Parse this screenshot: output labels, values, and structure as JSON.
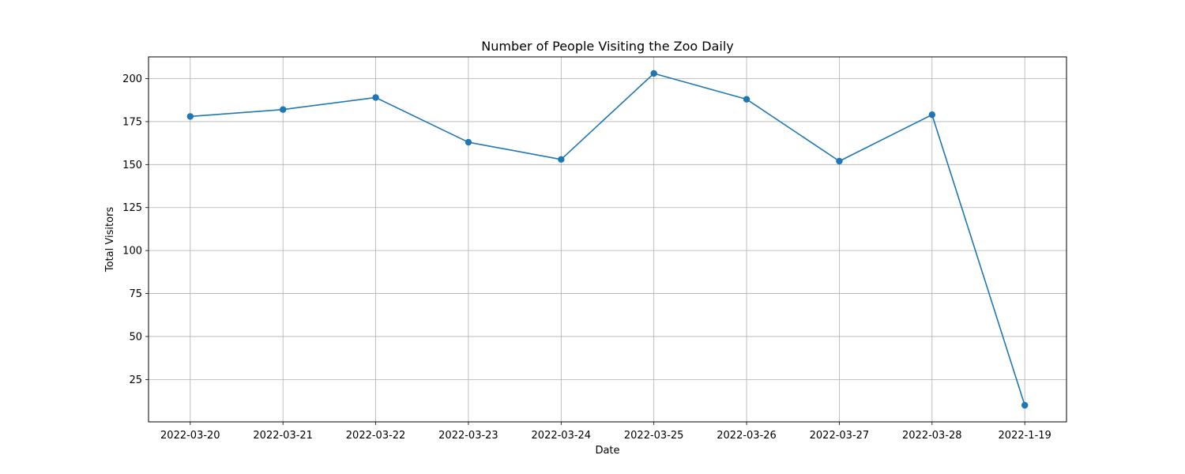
{
  "chart_data": {
    "type": "line",
    "title": "Number of People Visiting the Zoo Daily",
    "xlabel": "Date",
    "ylabel": "Total Visitors",
    "categories": [
      "2022-03-20",
      "2022-03-21",
      "2022-03-22",
      "2022-03-23",
      "2022-03-24",
      "2022-03-25",
      "2022-03-26",
      "2022-03-27",
      "2022-03-28",
      "2022-1-19"
    ],
    "series": [
      {
        "values": [
          178,
          182,
          189,
          163,
          153,
          203,
          188,
          152,
          179,
          10
        ]
      }
    ],
    "yticks": [
      25,
      50,
      75,
      100,
      125,
      150,
      175,
      200
    ],
    "ylim": [
      0.35,
      212.65
    ],
    "grid": true,
    "markers": "circle",
    "colors": {
      "line": "#1f77b4",
      "grid": "#b0b0b0",
      "axes": "#000000"
    }
  }
}
